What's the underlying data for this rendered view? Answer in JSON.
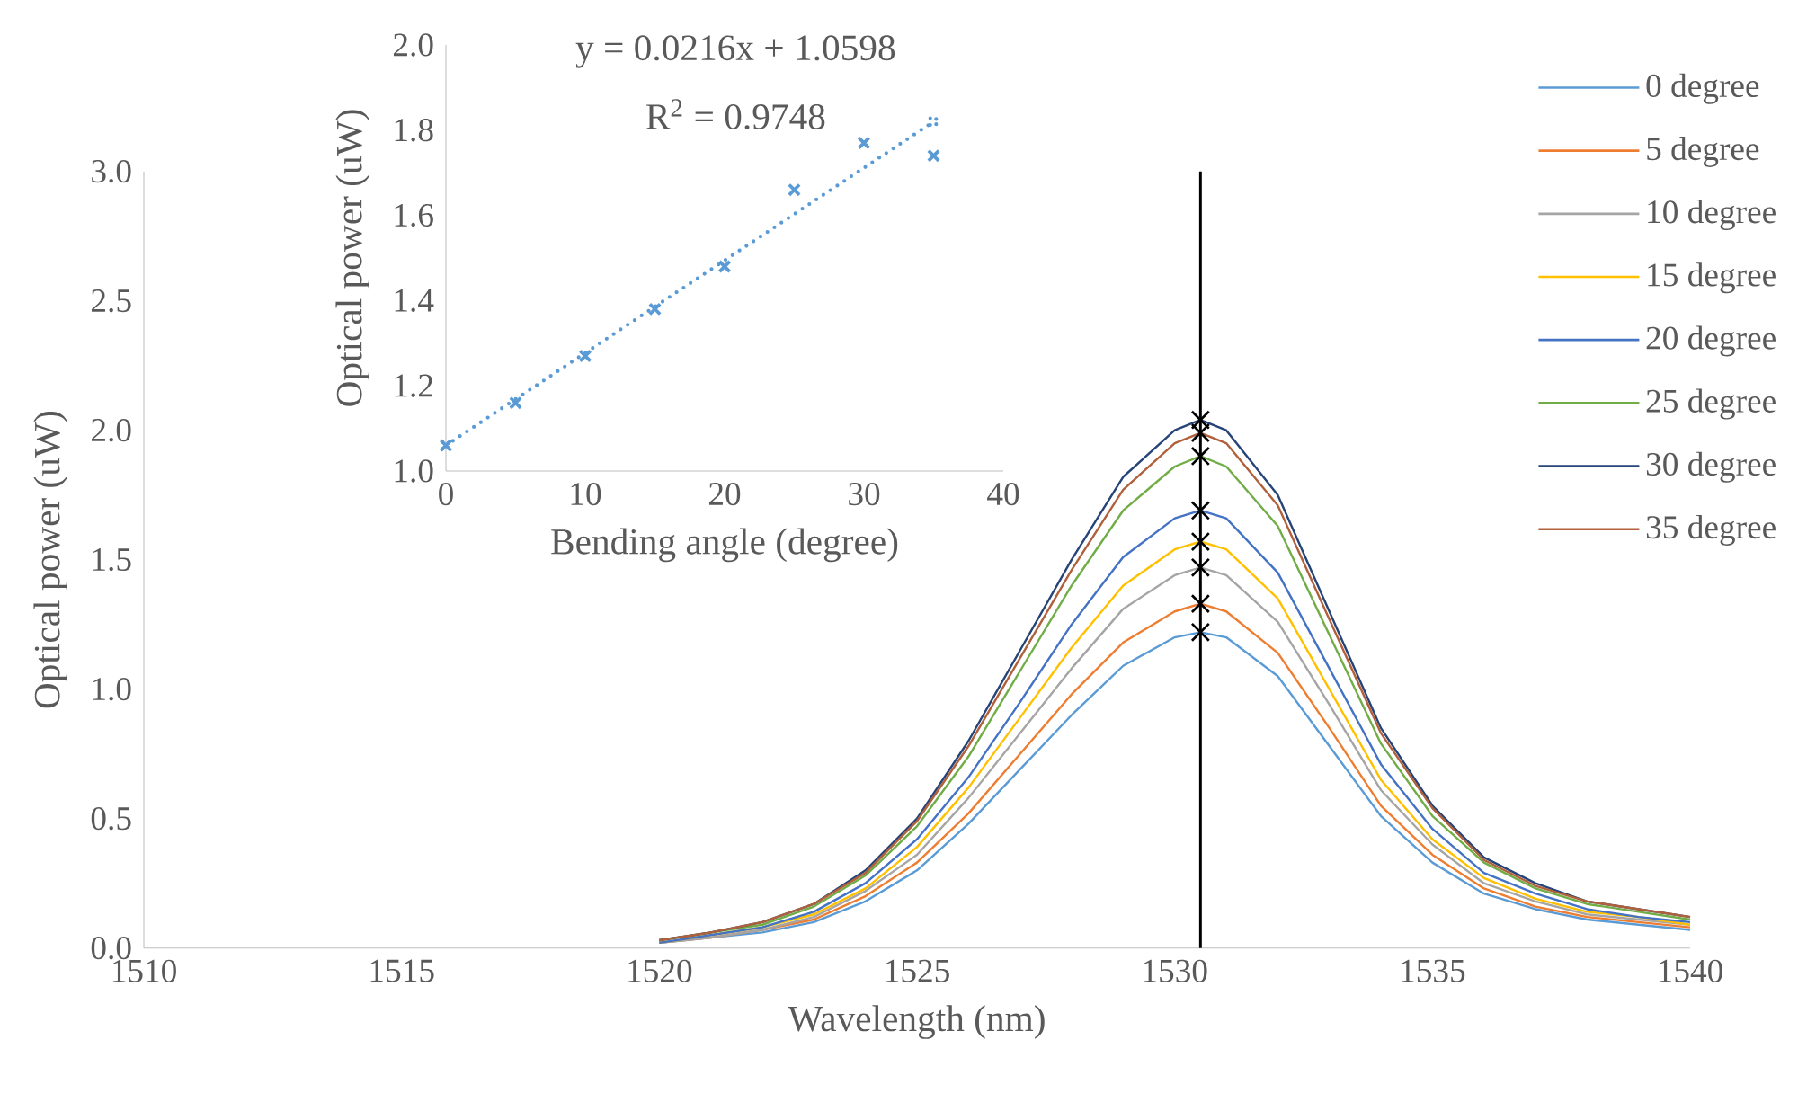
{
  "chart_data": [
    {
      "type": "line",
      "xlabel": "Wavelength (nm)",
      "ylabel": "Optical power (uW)",
      "xlim": [
        1510,
        1540
      ],
      "ylim": [
        0,
        3
      ],
      "xticks": [
        1510,
        1515,
        1520,
        1525,
        1530,
        1535,
        1540
      ],
      "yticks": [
        {
          "value": 0,
          "label": "0.0"
        },
        {
          "value": 0.5,
          "label": "0.5"
        },
        {
          "value": 1,
          "label": "1.0"
        },
        {
          "value": 1.5,
          "label": "1.5"
        },
        {
          "value": 2,
          "label": "2.0"
        },
        {
          "value": 2.5,
          "label": "2.5"
        },
        {
          "value": 3,
          "label": "3.0"
        }
      ],
      "legend": "top right",
      "marker": "none",
      "x": [
        1520,
        1521,
        1522,
        1523,
        1524,
        1525,
        1526,
        1527,
        1528,
        1529,
        1530,
        1530.5,
        1531,
        1532,
        1533,
        1534,
        1535,
        1536,
        1537,
        1538,
        1539,
        1540
      ],
      "ref_lines": [
        {
          "axis": "x",
          "value": 1530.5,
          "color": "#000000"
        }
      ],
      "series": [
        {
          "name": "0 degree",
          "color": "#5b9bd5",
          "values": [
            0.02,
            0.04,
            0.06,
            0.1,
            0.18,
            0.3,
            0.48,
            0.69,
            0.9,
            1.09,
            1.2,
            1.22,
            1.2,
            1.05,
            0.78,
            0.51,
            0.33,
            0.21,
            0.15,
            0.11,
            0.09,
            0.07
          ]
        },
        {
          "name": "5 degree",
          "color": "#ed7d31",
          "values": [
            0.02,
            0.04,
            0.07,
            0.11,
            0.2,
            0.33,
            0.52,
            0.75,
            0.98,
            1.18,
            1.3,
            1.33,
            1.3,
            1.14,
            0.85,
            0.55,
            0.36,
            0.23,
            0.16,
            0.12,
            0.1,
            0.08
          ]
        },
        {
          "name": "10 degree",
          "color": "#a5a5a5",
          "values": [
            0.02,
            0.04,
            0.07,
            0.12,
            0.22,
            0.36,
            0.58,
            0.83,
            1.08,
            1.31,
            1.44,
            1.47,
            1.44,
            1.26,
            0.94,
            0.61,
            0.4,
            0.25,
            0.18,
            0.13,
            0.11,
            0.09
          ]
        },
        {
          "name": "15 degree",
          "color": "#ffc000",
          "values": [
            0.02,
            0.05,
            0.08,
            0.13,
            0.23,
            0.39,
            0.62,
            0.89,
            1.16,
            1.4,
            1.54,
            1.57,
            1.54,
            1.35,
            1.0,
            0.65,
            0.42,
            0.27,
            0.19,
            0.14,
            0.12,
            0.09
          ]
        },
        {
          "name": "20 degree",
          "color": "#4472c4",
          "values": [
            0.02,
            0.05,
            0.08,
            0.14,
            0.25,
            0.42,
            0.66,
            0.95,
            1.25,
            1.51,
            1.66,
            1.69,
            1.66,
            1.45,
            1.08,
            0.71,
            0.46,
            0.29,
            0.21,
            0.15,
            0.12,
            0.1
          ]
        },
        {
          "name": "25 degree",
          "color": "#70ad47",
          "values": [
            0.03,
            0.06,
            0.09,
            0.16,
            0.28,
            0.47,
            0.74,
            1.07,
            1.4,
            1.69,
            1.86,
            1.9,
            1.86,
            1.63,
            1.21,
            0.79,
            0.51,
            0.33,
            0.23,
            0.17,
            0.14,
            0.11
          ]
        },
        {
          "name": "30 degree",
          "color": "#264478",
          "values": [
            0.03,
            0.06,
            0.1,
            0.17,
            0.3,
            0.5,
            0.8,
            1.15,
            1.5,
            1.82,
            2.0,
            2.04,
            2.0,
            1.75,
            1.3,
            0.85,
            0.55,
            0.35,
            0.25,
            0.18,
            0.15,
            0.12
          ]
        },
        {
          "name": "35 degree",
          "color": "#b0603a",
          "values": [
            0.03,
            0.06,
            0.1,
            0.17,
            0.29,
            0.49,
            0.78,
            1.12,
            1.46,
            1.77,
            1.95,
            1.99,
            1.95,
            1.71,
            1.27,
            0.83,
            0.54,
            0.34,
            0.24,
            0.18,
            0.15,
            0.12
          ]
        },
        {
          "type": "scatter",
          "marker": "cross",
          "color": "#000000",
          "x": [
            1530.5,
            1530.5,
            1530.5,
            1530.5,
            1530.5,
            1530.5,
            1530.5,
            1530.5
          ],
          "values": [
            1.22,
            1.33,
            1.47,
            1.57,
            1.69,
            1.9,
            2.04,
            1.99
          ]
        }
      ]
    },
    {
      "type": "scatter",
      "xlabel": "Bending angle (degree)",
      "ylabel": "Optical power (uW)",
      "xlim": [
        0,
        40
      ],
      "ylim": [
        1,
        2
      ],
      "xticks": [
        0,
        10,
        20,
        30,
        40
      ],
      "yticks": [
        {
          "value": 1,
          "label": "1.0"
        },
        {
          "value": 1.2,
          "label": "1.2"
        },
        {
          "value": 1.4,
          "label": "1.4"
        },
        {
          "value": 1.6,
          "label": "1.6"
        },
        {
          "value": 1.8,
          "label": "1.8"
        },
        {
          "value": 2,
          "label": "2.0"
        }
      ],
      "marker": "cross",
      "annotations": [
        "y = 0.0216x + 1.0598",
        "R$^{2}$ = 0.9748"
      ],
      "series": [
        {
          "color": "#5b9bd5",
          "x": [
            0,
            5,
            10,
            15,
            20,
            25,
            30,
            35
          ],
          "values": [
            1.06,
            1.16,
            1.27,
            1.38,
            1.48,
            1.66,
            1.77,
            1.74
          ]
        },
        {
          "type": "line",
          "line_style": "dotted",
          "color": "#5b9bd5",
          "x": [
            0,
            35
          ],
          "values": [
            1.06,
            1.82
          ]
        }
      ]
    }
  ]
}
